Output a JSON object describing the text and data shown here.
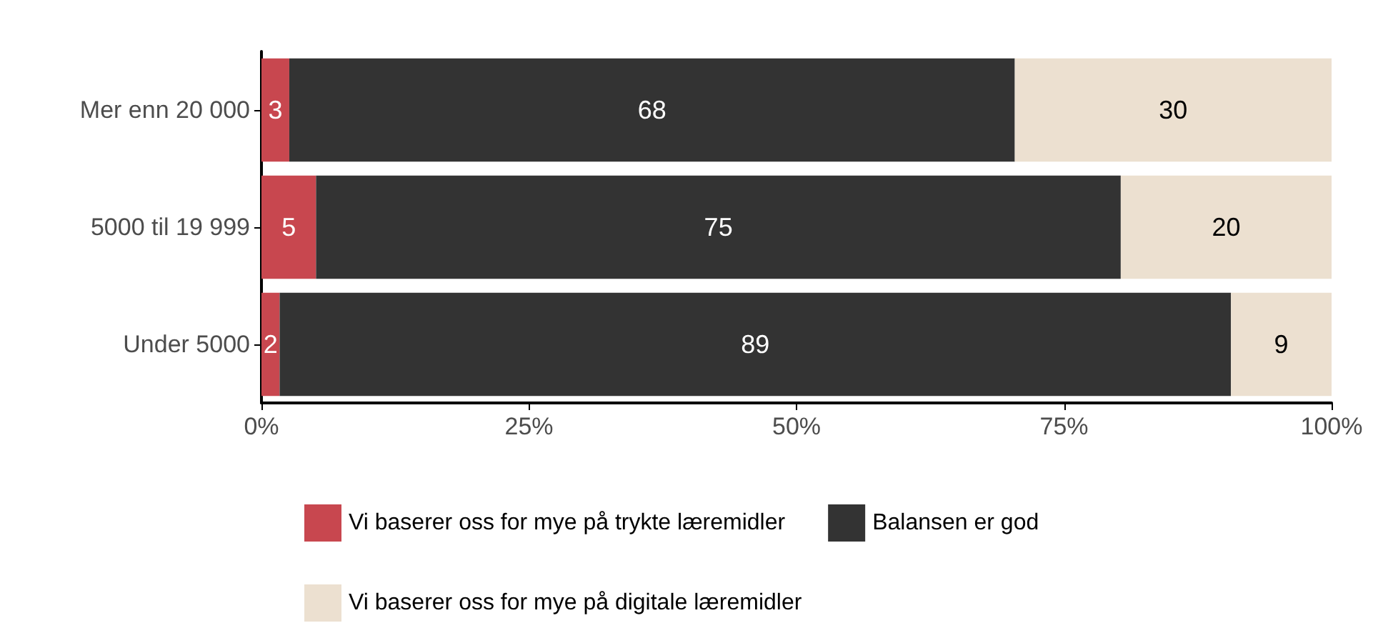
{
  "chart_data": {
    "type": "bar",
    "orientation": "horizontal",
    "stacked": true,
    "categories": [
      "Mer enn 20 000",
      "5000 til 19 999",
      "Under 5000"
    ],
    "series": [
      {
        "name": "Vi baserer oss for mye på trykte læremidler",
        "color": "#c8474f",
        "values": [
          2.6,
          5.1,
          1.7
        ],
        "value_labels": [
          "3",
          "5",
          "2"
        ]
      },
      {
        "name": "Balansen er god",
        "color": "#333333",
        "values": [
          67.8,
          75.2,
          88.9
        ],
        "value_labels": [
          "68",
          "75",
          "89"
        ]
      },
      {
        "name": "Vi baserer oss for mye på digitale læremidler",
        "color": "#ece0d0",
        "values": [
          29.6,
          19.7,
          9.4
        ],
        "value_labels": [
          "30",
          "20",
          "9"
        ]
      }
    ],
    "xlim": [
      0,
      100
    ],
    "xticks": [
      {
        "value": 0,
        "label": "0%"
      },
      {
        "value": 25,
        "label": "25%"
      },
      {
        "value": 50,
        "label": "50%"
      },
      {
        "value": 75,
        "label": "75%"
      },
      {
        "value": 100,
        "label": "100%"
      }
    ],
    "grid": false,
    "legend": "bottom"
  }
}
